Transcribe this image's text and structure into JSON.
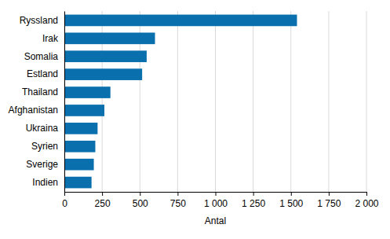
{
  "chart_data": {
    "type": "bar",
    "orientation": "horizontal",
    "categories": [
      "Ryssland",
      "Irak",
      "Somalia",
      "Estland",
      "Thailand",
      "Afghanistan",
      "Ukraina",
      "Syrien",
      "Sverige",
      "Indien"
    ],
    "values": [
      1540,
      600,
      545,
      515,
      305,
      265,
      220,
      205,
      195,
      180
    ],
    "color": "#0a70ad",
    "x_label": "Antal",
    "xlim": [
      0,
      2000
    ],
    "xticks": [
      0,
      250,
      500,
      750,
      {
        "value": 1000,
        "label": "1 000"
      },
      {
        "value": 1250,
        "label": "1 250"
      },
      {
        "value": 1500,
        "label": "1 500"
      },
      {
        "value": 1750,
        "label": "1 750"
      },
      {
        "value": 2000,
        "label": "2 000"
      }
    ],
    "grid": true
  }
}
